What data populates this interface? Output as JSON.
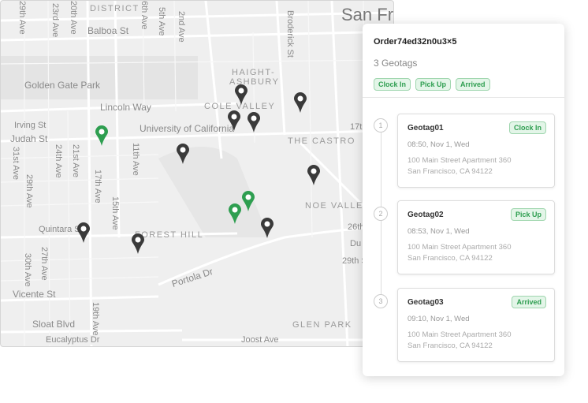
{
  "map": {
    "labels": [
      "DISTRICT",
      "29th Ave",
      "23rd Ave",
      "20th Ave",
      "6th Ave",
      "5th Ave",
      "2nd Ave",
      "Balboa St",
      "Broderick St",
      "San Fr",
      "HAIGHT-",
      "ASHBURY",
      "Golden Gate Park",
      "Lincoln Way",
      "COLE VALLEY",
      "Irving St",
      "Judah St",
      "University of California",
      "17th",
      "THE CASTRO",
      "31st Ave",
      "24th Ave",
      "21st Ave",
      "11th Ave",
      "29th Ave",
      "17th Ave",
      "15th Ave",
      "NOE VALLEY",
      "Quintara St",
      "FOREST HILL",
      "26th",
      "Du",
      "27th Ave",
      "30th Ave",
      "29th St",
      "19th Ave",
      "Portola Dr",
      "Vicente St",
      "Sloat Blvd",
      "GLEN PARK",
      "Joost Ave",
      "Eucalyptus Dr"
    ],
    "pin_colors": {
      "default": "#3a3a3a",
      "active": "#2e9e50"
    }
  },
  "panel": {
    "order": "Order74ed32n0u3×5",
    "count": "3 Geotags",
    "tags": [
      "Clock In",
      "Pick Up",
      "Arrived"
    ],
    "geotags": [
      {
        "num": "1",
        "title": "Geotag01",
        "tag": "Clock In",
        "time": "08:50, Nov 1, Wed",
        "addr1": "100 Main Street Apartment 360",
        "addr2": "San Francisco, CA 94122"
      },
      {
        "num": "2",
        "title": "Geotag02",
        "tag": "Pick Up",
        "time": "08:53, Nov 1, Wed",
        "addr1": "100 Main Street Apartment 360",
        "addr2": "San Francisco, CA 94122"
      },
      {
        "num": "3",
        "title": "Geotag03",
        "tag": "Arrived",
        "time": "09:10, Nov 1, Wed",
        "addr1": "100 Main Street Apartment 360",
        "addr2": "San Francisco, CA 94122"
      }
    ]
  }
}
